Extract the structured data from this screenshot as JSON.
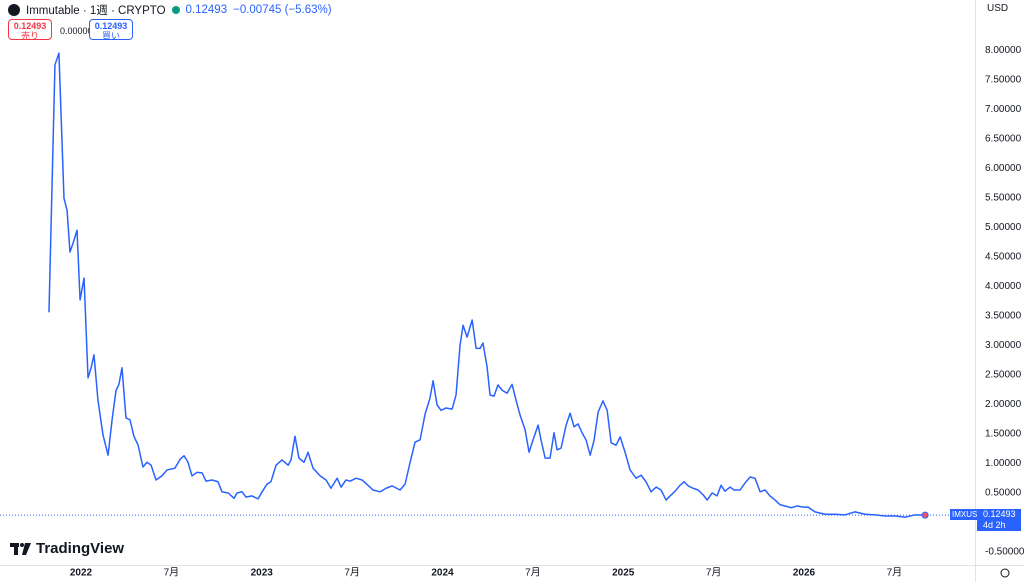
{
  "ui": {
    "symbol": "Immutable · 1週 · CRYPTO",
    "last": "0.12493",
    "change": "−0.00745 (−5.63%)",
    "sell_price": "0.12493",
    "sell": "売り",
    "spread": "0.00000",
    "buy_price": "0.12493",
    "buy": "買い",
    "currency": "USD",
    "ticker": "IMXUSD",
    "countdown": "4d 2h",
    "brand": "TradingView"
  },
  "chart_data": {
    "type": "line",
    "color": "#2962ff",
    "grid": false,
    "xlim": [
      2021.552,
      2026.946
    ],
    "ylim": [
      -0.72,
      8.85
    ],
    "xticks": [
      2022,
      {
        "value": 2022.5,
        "label": "7月"
      },
      2023,
      {
        "value": 2023.5,
        "label": "7月"
      },
      2024,
      {
        "value": 2024.5,
        "label": "7月"
      },
      2025,
      {
        "value": 2025.5,
        "label": "7月"
      },
      2026,
      {
        "value": 2026.5,
        "label": "7月"
      }
    ],
    "yticks": [
      {
        "value": -0.5,
        "label": "-0.50000"
      },
      {
        "value": 0.5,
        "label": "0.50000"
      },
      {
        "value": 1,
        "label": "1.00000"
      },
      {
        "value": 1.5,
        "label": "1.50000"
      },
      {
        "value": 2,
        "label": "2.00000"
      },
      {
        "value": 2.5,
        "label": "2.50000"
      },
      {
        "value": 3,
        "label": "3.00000"
      },
      {
        "value": 3.5,
        "label": "3.50000"
      },
      {
        "value": 4,
        "label": "4.00000"
      },
      {
        "value": 4.5,
        "label": "4.50000"
      },
      {
        "value": 5,
        "label": "5.00000"
      },
      {
        "value": 5.5,
        "label": "5.50000"
      },
      {
        "value": 6,
        "label": "6.00000"
      },
      {
        "value": 6.5,
        "label": "6.50000"
      },
      {
        "value": 7,
        "label": "7.00000"
      },
      {
        "value": 7.5,
        "label": "7.50000"
      },
      {
        "value": 8,
        "label": "8.00000"
      }
    ],
    "x": [
      2021.823,
      2021.856,
      2021.878,
      2021.906,
      2021.923,
      2021.939,
      2021.956,
      2021.978,
      2021.995,
      2022.017,
      2022.039,
      2022.056,
      2022.072,
      2022.094,
      2022.122,
      2022.15,
      2022.172,
      2022.194,
      2022.21,
      2022.227,
      2022.249,
      2022.271,
      2022.293,
      2022.316,
      2022.343,
      2022.365,
      2022.388,
      2022.415,
      2022.448,
      2022.476,
      2022.52,
      2022.548,
      2022.57,
      2022.592,
      2022.614,
      2022.642,
      2022.67,
      2022.692,
      2022.725,
      2022.758,
      2022.78,
      2022.814,
      2022.847,
      2022.863,
      2022.891,
      2022.913,
      2022.946,
      2022.98,
      2023.002,
      2023.029,
      2023.051,
      2023.079,
      2023.112,
      2023.146,
      2023.162,
      2023.184,
      2023.206,
      2023.234,
      2023.256,
      2023.284,
      2023.323,
      2023.356,
      2023.383,
      2023.417,
      2023.439,
      2023.466,
      2023.489,
      2023.522,
      2023.555,
      2023.588,
      2023.616,
      2023.655,
      2023.688,
      2023.721,
      2023.765,
      2023.793,
      2023.821,
      2023.848,
      2023.876,
      2023.904,
      2023.931,
      2023.948,
      2023.97,
      2023.992,
      2024.02,
      2024.053,
      2024.075,
      2024.097,
      2024.114,
      2024.136,
      2024.164,
      2024.186,
      2024.208,
      2024.224,
      2024.247,
      2024.263,
      2024.285,
      2024.307,
      2024.33,
      2024.357,
      2024.385,
      2024.407,
      2024.429,
      2024.457,
      2024.479,
      2024.501,
      2024.529,
      2024.545,
      2024.568,
      2024.595,
      2024.617,
      2024.634,
      2024.656,
      2024.684,
      2024.706,
      2024.728,
      2024.75,
      2024.772,
      2024.794,
      2024.817,
      2024.839,
      2024.861,
      2024.888,
      2024.911,
      2024.933,
      2024.96,
      2024.983,
      2025.01,
      2025.038,
      2025.071,
      2025.099,
      2025.126,
      2025.154,
      2025.182,
      2025.209,
      2025.237,
      2025.259,
      2025.287,
      2025.314,
      2025.337,
      2025.359,
      2025.386,
      2025.414,
      2025.442,
      2025.464,
      2025.492,
      2025.519,
      2025.541,
      2025.563,
      2025.591,
      2025.613,
      2025.646,
      2025.674,
      2025.702,
      2025.729,
      2025.757,
      2025.785,
      2025.812,
      2025.84,
      2025.868,
      2025.895,
      2025.929,
      2025.962,
      2025.995,
      2026.023,
      2026.061,
      2026.117,
      2026.172,
      2026.227,
      2026.283,
      2026.338,
      2026.393,
      2026.449,
      2026.504,
      2026.559,
      2026.615,
      2026.67
    ],
    "values": [
      3.56,
      7.75,
      7.95,
      5.49,
      5.29,
      4.58,
      4.73,
      4.95,
      3.77,
      4.14,
      2.45,
      2.62,
      2.84,
      2.07,
      1.48,
      1.14,
      1.74,
      2.24,
      2.34,
      2.62,
      1.77,
      1.74,
      1.46,
      1.31,
      0.94,
      1.02,
      0.97,
      0.72,
      0.79,
      0.89,
      0.92,
      1.07,
      1.13,
      1.02,
      0.79,
      0.85,
      0.84,
      0.7,
      0.72,
      0.69,
      0.52,
      0.5,
      0.41,
      0.5,
      0.52,
      0.43,
      0.45,
      0.4,
      0.52,
      0.65,
      0.69,
      0.97,
      1.06,
      0.97,
      1.06,
      1.46,
      1.09,
      1.02,
      1.19,
      0.92,
      0.79,
      0.72,
      0.58,
      0.75,
      0.6,
      0.72,
      0.7,
      0.75,
      0.72,
      0.63,
      0.55,
      0.52,
      0.58,
      0.62,
      0.55,
      0.65,
      1.02,
      1.36,
      1.4,
      1.84,
      2.11,
      2.4,
      1.99,
      1.9,
      1.94,
      1.92,
      2.16,
      3.0,
      3.34,
      3.14,
      3.43,
      2.95,
      2.95,
      3.04,
      2.63,
      2.16,
      2.14,
      2.33,
      2.24,
      2.19,
      2.34,
      2.07,
      1.82,
      1.57,
      1.19,
      1.4,
      1.65,
      1.4,
      1.09,
      1.09,
      1.52,
      1.23,
      1.26,
      1.65,
      1.85,
      1.62,
      1.67,
      1.52,
      1.4,
      1.14,
      1.4,
      1.87,
      2.06,
      1.9,
      1.35,
      1.31,
      1.45,
      1.19,
      0.89,
      0.75,
      0.8,
      0.69,
      0.52,
      0.6,
      0.55,
      0.38,
      0.45,
      0.53,
      0.63,
      0.69,
      0.62,
      0.58,
      0.55,
      0.47,
      0.38,
      0.5,
      0.45,
      0.63,
      0.53,
      0.6,
      0.55,
      0.55,
      0.67,
      0.77,
      0.75,
      0.52,
      0.55,
      0.45,
      0.38,
      0.3,
      0.28,
      0.25,
      0.28,
      0.26,
      0.26,
      0.18,
      0.14,
      0.14,
      0.13,
      0.18,
      0.14,
      0.13,
      0.11,
      0.11,
      0.09,
      0.13,
      0.12493
    ]
  }
}
